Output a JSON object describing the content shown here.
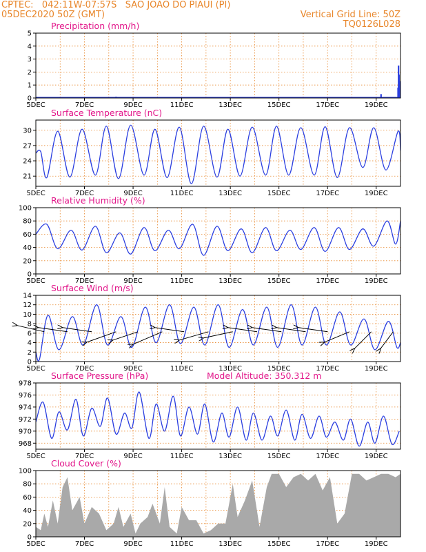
{
  "header": {
    "line1_left": "CPTEC:   042:11W-07:57S   SAO JOAO DO PIAUI (PI)",
    "line2_left": "05DEC2020 50Z (GMT)",
    "line2_right": "Vertical Grid Line: 50Z",
    "line3_right": "TQ0126L028"
  },
  "colors": {
    "header": "#e8862a",
    "title": "#e2178a",
    "series": "#2b3fe0",
    "cloud": "#a9a9a9",
    "grid": "#e8862a"
  },
  "x_axis": {
    "range_days": [
      5,
      20
    ],
    "tick_days": [
      5,
      7,
      9,
      11,
      13,
      15,
      17,
      19
    ],
    "tick_labels": [
      "5DEC",
      "7DEC",
      "9DEC",
      "11DEC",
      "13DEC",
      "15DEC",
      "17DEC",
      "19DEC"
    ]
  },
  "chart_data": [
    {
      "type": "bar",
      "title": "Precipitation (mm/h)",
      "ylim": [
        0,
        5
      ],
      "yticks": [
        0,
        1,
        2,
        3,
        4,
        5
      ],
      "grid": true,
      "x": [
        5.25,
        6.5,
        8.3,
        12.1,
        16.2,
        18.7,
        19.2,
        19.9,
        19.92,
        19.94,
        19.96,
        19.98
      ],
      "values": [
        0.05,
        0.05,
        0.1,
        0.05,
        0.05,
        0.05,
        0.3,
        0.8,
        2.5,
        1.8,
        1.3,
        1.0
      ]
    },
    {
      "type": "line",
      "title": "Surface Temperature (nC)",
      "ylim": [
        19,
        32
      ],
      "yticks": [
        21,
        24,
        27,
        30
      ],
      "grid": true,
      "x": [
        5.0,
        5.2,
        5.45,
        5.9,
        6.4,
        6.9,
        7.45,
        7.9,
        8.4,
        8.9,
        9.45,
        9.9,
        10.4,
        10.9,
        11.4,
        11.9,
        12.45,
        12.9,
        13.4,
        13.9,
        14.45,
        14.9,
        15.4,
        15.9,
        16.45,
        16.9,
        17.4,
        17.9,
        18.45,
        18.9,
        19.4,
        19.9,
        20.0
      ],
      "values": [
        25.5,
        25.8,
        20.7,
        29.8,
        20.8,
        30.2,
        21.2,
        30.8,
        20.5,
        31.0,
        21.2,
        30.2,
        20.7,
        30.6,
        19.5,
        30.8,
        20.8,
        30.2,
        21.0,
        30.6,
        21.2,
        30.8,
        21.2,
        30.5,
        21.2,
        30.7,
        20.7,
        30.5,
        22.7,
        30.5,
        22.2,
        29.8,
        26.0
      ]
    },
    {
      "type": "line",
      "title": "Relative Humidity (%)",
      "ylim": [
        0,
        100
      ],
      "yticks": [
        0,
        20,
        40,
        60,
        80,
        100
      ],
      "grid": true,
      "x": [
        5.0,
        5.45,
        5.9,
        6.45,
        6.9,
        7.45,
        7.9,
        8.45,
        8.9,
        9.45,
        9.9,
        10.45,
        10.9,
        11.45,
        11.9,
        12.45,
        12.9,
        13.45,
        13.9,
        14.45,
        14.9,
        15.45,
        15.9,
        16.45,
        16.9,
        17.45,
        17.9,
        18.45,
        18.9,
        19.45,
        19.8,
        20.0
      ],
      "values": [
        60,
        75,
        38,
        66,
        36,
        72,
        32,
        62,
        30,
        70,
        35,
        66,
        38,
        75,
        28,
        72,
        35,
        68,
        32,
        70,
        35,
        66,
        37,
        70,
        34,
        70,
        37,
        68,
        42,
        80,
        45,
        80
      ]
    },
    {
      "type": "line",
      "title": "Surface Wind (m/s)",
      "ylim": [
        0,
        14
      ],
      "yticks": [
        0,
        2,
        4,
        6,
        8,
        10,
        12,
        14
      ],
      "grid": true,
      "x": [
        5.0,
        5.15,
        5.5,
        5.95,
        6.5,
        6.95,
        7.5,
        7.95,
        8.5,
        8.95,
        9.5,
        9.95,
        10.5,
        10.95,
        11.5,
        11.95,
        12.5,
        12.95,
        13.5,
        13.95,
        14.5,
        14.95,
        15.5,
        15.95,
        16.5,
        16.95,
        17.5,
        17.95,
        18.5,
        18.95,
        19.5,
        19.85,
        20.0
      ],
      "values": [
        2.0,
        0.5,
        9.8,
        2.5,
        9.5,
        3.5,
        12.0,
        3.5,
        9.5,
        3.0,
        11.5,
        4.0,
        12.0,
        3.8,
        11.5,
        3.5,
        12.0,
        3.0,
        11.0,
        3.5,
        11.5,
        3.0,
        12.0,
        3.5,
        11.5,
        3.5,
        10.5,
        3.5,
        9.0,
        2.5,
        8.5,
        3.0,
        4.0
      ],
      "wind_vectors": [
        {
          "x": 5.35,
          "u": -1.3,
          "v": 0.3
        },
        {
          "x": 6.3,
          "u": -1.4,
          "v": 0.2
        },
        {
          "x": 7.3,
          "u": -1.4,
          "v": 0.2
        },
        {
          "x": 8.3,
          "u": -1.4,
          "v": -0.5
        },
        {
          "x": 9.2,
          "u": -1.2,
          "v": -0.4
        },
        {
          "x": 10.2,
          "u": -1.4,
          "v": -0.6
        },
        {
          "x": 11.1,
          "u": -1.4,
          "v": 0.2
        },
        {
          "x": 12.1,
          "u": -1.4,
          "v": -0.4
        },
        {
          "x": 13.1,
          "u": -1.4,
          "v": -0.3
        },
        {
          "x": 14.1,
          "u": -1.4,
          "v": 0.2
        },
        {
          "x": 15.1,
          "u": -1.4,
          "v": 0.2
        },
        {
          "x": 16.1,
          "u": -1.4,
          "v": 0.2
        },
        {
          "x": 17.0,
          "u": -1.4,
          "v": 0.2
        },
        {
          "x": 17.9,
          "u": -1.2,
          "v": -0.5
        },
        {
          "x": 18.8,
          "u": -0.8,
          "v": -0.8
        },
        {
          "x": 19.7,
          "u": -0.6,
          "v": -0.8
        }
      ]
    },
    {
      "type": "line",
      "title": "Surface Pressure (hPa)",
      "subtitle": "Model Altitude: 350.312 m",
      "ylim": [
        967,
        978
      ],
      "yticks": [
        968,
        970,
        972,
        974,
        976,
        978
      ],
      "grid": true,
      "x": [
        5.0,
        5.3,
        5.65,
        5.95,
        6.3,
        6.65,
        6.95,
        7.3,
        7.65,
        7.95,
        8.3,
        8.65,
        8.95,
        9.25,
        9.65,
        9.95,
        10.3,
        10.65,
        10.95,
        11.3,
        11.65,
        11.95,
        12.3,
        12.65,
        12.95,
        13.3,
        13.65,
        13.95,
        14.3,
        14.65,
        14.95,
        15.3,
        15.65,
        15.95,
        16.3,
        16.65,
        16.95,
        17.3,
        17.65,
        17.95,
        18.3,
        18.65,
        18.95,
        19.3,
        19.65,
        19.95
      ],
      "values": [
        971.5,
        974.8,
        968.8,
        973.2,
        970.2,
        975.3,
        969.2,
        973.8,
        970.8,
        975.5,
        969.5,
        973.0,
        970.5,
        976.5,
        968.8,
        974.5,
        970.0,
        975.8,
        969.2,
        974.0,
        969.5,
        974.5,
        968.2,
        973.0,
        969.0,
        974.0,
        968.5,
        973.0,
        968.5,
        972.5,
        969.2,
        973.5,
        968.5,
        972.8,
        968.8,
        972.5,
        969.0,
        971.5,
        968.5,
        972.0,
        967.5,
        971.5,
        968.0,
        972.5,
        967.8,
        970.0
      ]
    },
    {
      "type": "area",
      "title": "Cloud Cover (%)",
      "ylim": [
        0,
        100
      ],
      "yticks": [
        0,
        20,
        40,
        60,
        80,
        100
      ],
      "grid": true,
      "x": [
        5.0,
        5.2,
        5.35,
        5.5,
        5.7,
        5.9,
        6.1,
        6.3,
        6.5,
        6.8,
        7.0,
        7.3,
        7.6,
        7.9,
        8.2,
        8.4,
        8.6,
        8.9,
        9.1,
        9.3,
        9.6,
        9.8,
        10.1,
        10.3,
        10.5,
        10.8,
        11.0,
        11.3,
        11.6,
        11.9,
        12.2,
        12.5,
        12.8,
        13.1,
        13.3,
        13.6,
        13.9,
        14.2,
        14.5,
        14.7,
        15.0,
        15.3,
        15.6,
        15.9,
        16.2,
        16.5,
        16.8,
        17.1,
        17.4,
        17.7,
        18.0,
        18.3,
        18.6,
        18.9,
        19.2,
        19.5,
        19.8,
        20.0
      ],
      "values": [
        15,
        10,
        35,
        15,
        55,
        20,
        75,
        90,
        40,
        60,
        20,
        45,
        35,
        10,
        20,
        45,
        15,
        35,
        5,
        20,
        30,
        50,
        20,
        75,
        15,
        5,
        45,
        25,
        25,
        5,
        10,
        20,
        20,
        80,
        30,
        55,
        85,
        15,
        75,
        95,
        95,
        75,
        90,
        95,
        85,
        95,
        70,
        90,
        20,
        35,
        95,
        95,
        85,
        90,
        95,
        95,
        90,
        95
      ]
    }
  ]
}
